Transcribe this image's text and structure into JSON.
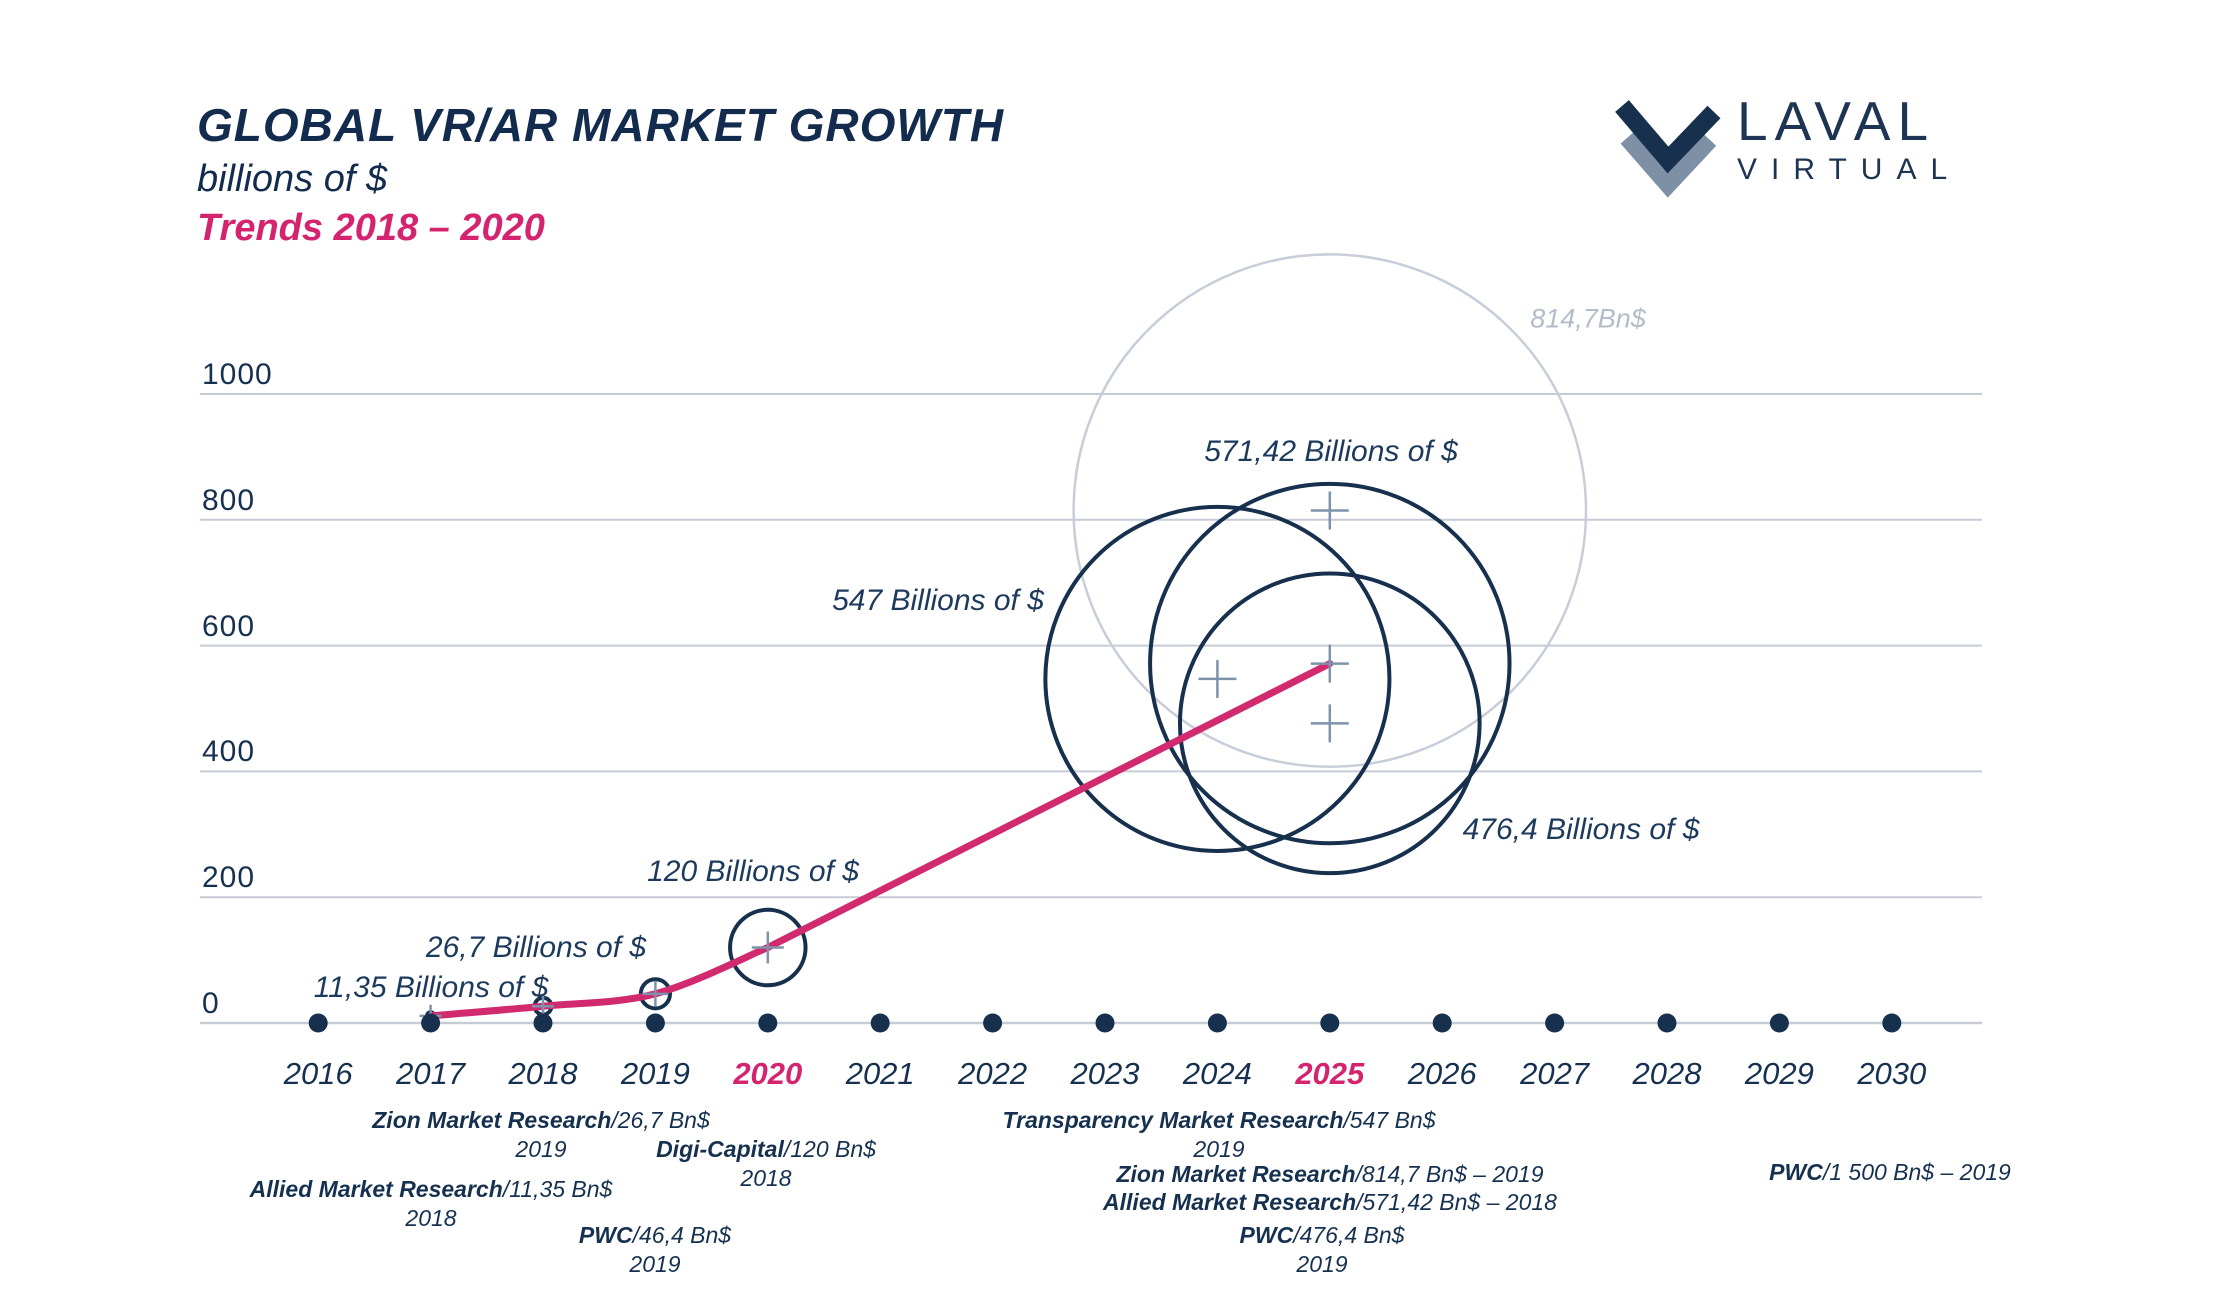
{
  "header": {
    "title": "GLOBAL VR/AR MARKET GROWTH",
    "subtitle": "billions of $",
    "trends": "Trends 2018 – 2020"
  },
  "logo": {
    "word_top": "LAVAL",
    "word_bottom": "VIRTUAL"
  },
  "colors": {
    "navy": "#16304e",
    "pink_text": "#d4246f",
    "pink_line": "#d22a6f",
    "grey_circle": "#c7ced9",
    "gridline": "#c6ccd6",
    "cross": "#7e93ab",
    "grey_label": "#b3bdca"
  },
  "chart_data": {
    "type": "bubble",
    "title": "GLOBAL VR/AR MARKET GROWTH",
    "unit": "billions of $",
    "x_years": [
      2016,
      2017,
      2018,
      2019,
      2020,
      2021,
      2022,
      2023,
      2024,
      2025,
      2026,
      2027,
      2028,
      2029,
      2030
    ],
    "highlighted_years": [
      2020,
      2025
    ],
    "y_ticks": [
      0,
      200,
      400,
      600,
      800,
      1000
    ],
    "ylim": [
      0,
      1100
    ],
    "grid": true,
    "trend_line": [
      {
        "year": 2017,
        "value": 11.35
      },
      {
        "year": 2018,
        "value": 26.7
      },
      {
        "year": 2019,
        "value": 46.4
      },
      {
        "year": 2020,
        "value": 120
      },
      {
        "year": 2025,
        "value": 571.42
      }
    ],
    "bubbles": [
      {
        "year": 2017,
        "value": 11.35,
        "label": "11,35 Billions of $",
        "style": "navy"
      },
      {
        "year": 2018,
        "value": 26.7,
        "label": "26,7 Billions of $",
        "style": "navy"
      },
      {
        "year": 2019,
        "value": 46.4,
        "label": "",
        "style": "navy"
      },
      {
        "year": 2020,
        "value": 120,
        "label": "120 Billions of $",
        "style": "navy"
      },
      {
        "year": 2024,
        "value": 547,
        "label": "547 Billions of $",
        "style": "navy"
      },
      {
        "year": 2025,
        "value": 571.42,
        "label": "571,42 Billions of $",
        "style": "navy"
      },
      {
        "year": 2025,
        "value": 476.4,
        "label": "476,4 Billions of $",
        "style": "navy"
      },
      {
        "year": 2025,
        "value": 814.7,
        "label": "814,7Bn$",
        "style": "grey"
      }
    ],
    "sources": [
      {
        "name": "Zion Market Research",
        "detail": "/26,7 Bn$",
        "year": "2019"
      },
      {
        "name": "Digi-Capital",
        "detail": "/120 Bn$",
        "year": "2018"
      },
      {
        "name": "Allied Market Research",
        "detail": "/11,35 Bn$",
        "year": "2018"
      },
      {
        "name": "PWC",
        "detail": "/46,4 Bn$",
        "year": "2019"
      },
      {
        "name": "Transparency Market Research",
        "detail": "/547 Bn$",
        "year": "2019"
      },
      {
        "name": "Zion Market Research",
        "detail": "/814,7 Bn$ – 2019",
        "year": ""
      },
      {
        "name": "Allied Market Research",
        "detail": "/571,42 Bn$ – 2018",
        "year": ""
      },
      {
        "name": "PWC",
        "detail": "/476,4 Bn$",
        "year": "2019"
      },
      {
        "name": "PWC",
        "detail": "/1 500 Bn$ – 2019",
        "year": ""
      }
    ]
  }
}
